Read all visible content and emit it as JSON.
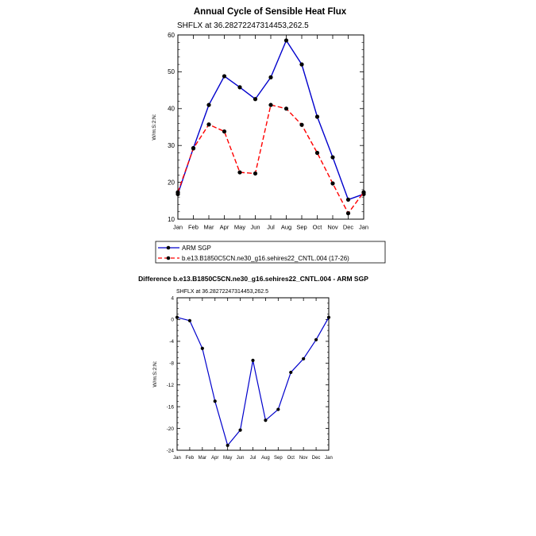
{
  "chart_data": [
    {
      "type": "line",
      "title": "Annual Cycle of Sensible Heat Flux",
      "subtitle": "SHFLX at 36.28272247314453,262.5",
      "ylabel": "W/m:S:2:N:",
      "xlabel": "",
      "categories": [
        "Jan",
        "Feb",
        "Mar",
        "Apr",
        "May",
        "Jun",
        "Jul",
        "Aug",
        "Sep",
        "Oct",
        "Nov",
        "Dec",
        "Jan"
      ],
      "ylim": [
        10,
        60
      ],
      "yticks": [
        10,
        20,
        30,
        40,
        50,
        60
      ],
      "legend_position": "below",
      "series": [
        {
          "name": "ARM SGP",
          "color": "#0000cc",
          "dash": "solid",
          "values": [
            16.8,
            29.3,
            41.0,
            48.8,
            45.8,
            42.6,
            48.5,
            58.5,
            52.0,
            37.8,
            26.8,
            15.3,
            16.8
          ]
        },
        {
          "name": "b.e13.B1850C5CN.ne30_g16.sehires22_CNTL.004 (17-26)",
          "color": "#ff0000",
          "dash": "dashed",
          "values": [
            17.3,
            29.2,
            35.7,
            33.8,
            22.7,
            22.4,
            41.0,
            40.0,
            35.6,
            28.0,
            19.7,
            11.6,
            17.3
          ]
        }
      ]
    },
    {
      "type": "line",
      "title": "Difference b.e13.B1850C5CN.ne30_g16.sehires22_CNTL.004 - ARM SGP",
      "subtitle": "SHFLX at 36.28272247314453,262.5",
      "ylabel": "W/m:S:2:N:",
      "xlabel": "",
      "categories": [
        "Jan",
        "Feb",
        "Mar",
        "Apr",
        "May",
        "Jun",
        "Jul",
        "Aug",
        "Sep",
        "Oct",
        "Nov",
        "Dec",
        "Jan"
      ],
      "ylim": [
        -24,
        4
      ],
      "yticks": [
        -24,
        -20,
        -16,
        -12,
        -8,
        -4,
        0,
        4
      ],
      "series": [
        {
          "name": "Difference",
          "color": "#0000cc",
          "dash": "solid",
          "values": [
            0.4,
            -0.2,
            -5.3,
            -15.0,
            -23.1,
            -20.3,
            -7.5,
            -18.5,
            -16.5,
            -9.7,
            -7.2,
            -3.7,
            0.4
          ]
        }
      ]
    }
  ]
}
